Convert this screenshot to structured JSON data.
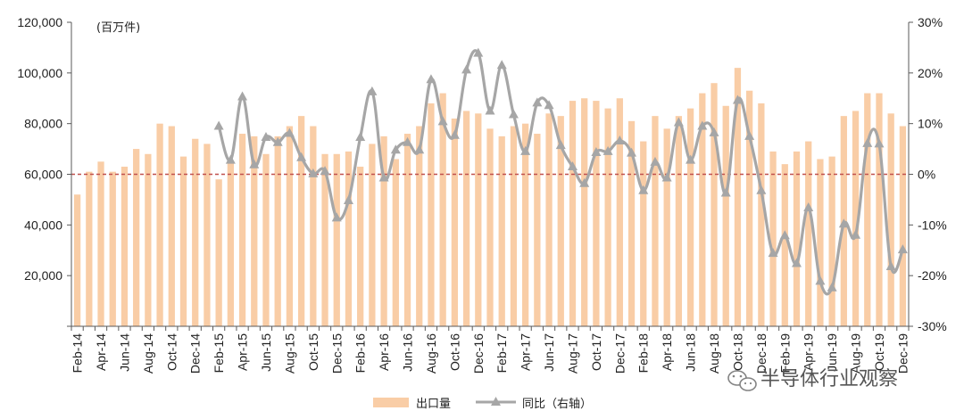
{
  "chart_data": {
    "type": "bar+line",
    "unit_label": "(百万件)",
    "categories": [
      "Feb-14",
      "Mar-14",
      "Apr-14",
      "May-14",
      "Jun-14",
      "Jul-14",
      "Aug-14",
      "Sep-14",
      "Oct-14",
      "Nov-14",
      "Dec-14",
      "Jan-15",
      "Feb-15",
      "Mar-15",
      "Apr-15",
      "May-15",
      "Jun-15",
      "Jul-15",
      "Aug-15",
      "Sep-15",
      "Oct-15",
      "Nov-15",
      "Dec-15",
      "Jan-16",
      "Feb-16",
      "Mar-16",
      "Apr-16",
      "May-16",
      "Jun-16",
      "Jul-16",
      "Aug-16",
      "Sep-16",
      "Oct-16",
      "Nov-16",
      "Dec-16",
      "Jan-17",
      "Feb-17",
      "Mar-17",
      "Apr-17",
      "May-17",
      "Jun-17",
      "Jul-17",
      "Aug-17",
      "Sep-17",
      "Oct-17",
      "Nov-17",
      "Dec-17",
      "Jan-18",
      "Feb-18",
      "Mar-18",
      "Apr-18",
      "May-18",
      "Jun-18",
      "Jul-18",
      "Aug-18",
      "Sep-18",
      "Oct-18",
      "Nov-18",
      "Dec-18",
      "Jan-19",
      "Feb-19",
      "Mar-19",
      "Apr-19",
      "May-19",
      "Jun-19",
      "Jul-19",
      "Aug-19",
      "Sep-19",
      "Oct-19",
      "Nov-19",
      "Dec-19"
    ],
    "x_tick_labels": [
      "Feb-14",
      "Apr-14",
      "Jun-14",
      "Aug-14",
      "Oct-14",
      "Dec-14",
      "Feb-15",
      "Apr-15",
      "Jun-15",
      "Aug-15",
      "Oct-15",
      "Dec-15",
      "Feb-16",
      "Apr-16",
      "Jun-16",
      "Aug-16",
      "Oct-16",
      "Dec-16",
      "Feb-17",
      "Apr-17",
      "Jun-17",
      "Aug-17",
      "Oct-17",
      "Dec-17",
      "Feb-18",
      "Apr-18",
      "Jun-18",
      "Aug-18",
      "Oct-18",
      "Dec-18",
      "Feb-19",
      "Apr-19",
      "Jun-19",
      "Aug-19",
      "Oct-19",
      "Dec-19"
    ],
    "y_left_ticks": [
      "20,000",
      "40,000",
      "60,000",
      "80,000",
      "100,000",
      "120,000"
    ],
    "y_left_range": [
      0,
      120000
    ],
    "y_right_ticks": [
      "-30%",
      "-20%",
      "-10%",
      "0%",
      "10%",
      "20%",
      "30%"
    ],
    "y_right_range": [
      -30,
      30
    ],
    "series": [
      {
        "name": "出口量",
        "type": "bar",
        "axis": "left",
        "color": "#F9CDA6",
        "values": [
          52000,
          61000,
          65000,
          61000,
          63000,
          70000,
          68000,
          80000,
          79000,
          67000,
          74000,
          72000,
          58000,
          65000,
          76000,
          75000,
          68000,
          75000,
          79000,
          83000,
          79000,
          68000,
          68000,
          69000,
          63000,
          72000,
          75000,
          66000,
          76000,
          79000,
          88000,
          92000,
          82000,
          85000,
          84000,
          78000,
          75000,
          79000,
          80000,
          76000,
          84000,
          83000,
          89000,
          90000,
          89000,
          86000,
          90000,
          81000,
          73000,
          83000,
          78000,
          83000,
          86000,
          92000,
          96000,
          87000,
          102000,
          93000,
          88000,
          69000,
          64000,
          69000,
          73000,
          66000,
          67000,
          83000,
          85000,
          92000,
          92000,
          84000,
          79000
        ]
      },
      {
        "name": "同比（右轴）",
        "type": "line",
        "axis": "right",
        "color": "#A6A6A6",
        "values": [
          null,
          null,
          null,
          null,
          null,
          null,
          null,
          null,
          null,
          null,
          null,
          null,
          9.5,
          2.8,
          15.3,
          1.9,
          7.3,
          6.3,
          8.1,
          3.3,
          0.1,
          0.6,
          -8.6,
          -5.2,
          7.3,
          16.3,
          -0.7,
          4.8,
          6.3,
          4.8,
          18.7,
          10.4,
          7.7,
          20.6,
          23.9,
          12.5,
          21.5,
          11.8,
          4.5,
          14.1,
          13.6,
          5.7,
          1.5,
          -1.8,
          4.3,
          4.5,
          6.6,
          4.2,
          -3.2,
          2.4,
          -0.7,
          10.2,
          2.8,
          9.5,
          8.2,
          -3.7,
          14.6,
          7.5,
          -3.2,
          -15.6,
          -12.1,
          -17.6,
          -6.6,
          -21.1,
          -22.4,
          -9.8,
          -12.0,
          6.1,
          6.0,
          -18.2,
          -14.9
        ]
      }
    ],
    "reference_line": {
      "axis": "right",
      "value": 0,
      "color": "#C0504D",
      "style": "dashed"
    },
    "legend": [
      {
        "label": "出口量",
        "swatch": "bar",
        "color": "#F9CDA6"
      },
      {
        "label": "同比（右轴）",
        "swatch": "line",
        "color": "#A6A6A6"
      }
    ],
    "legend_position": "bottom",
    "grid": false
  },
  "watermark": {
    "text": "半导体行业观察",
    "icon": "wechat-icon"
  }
}
